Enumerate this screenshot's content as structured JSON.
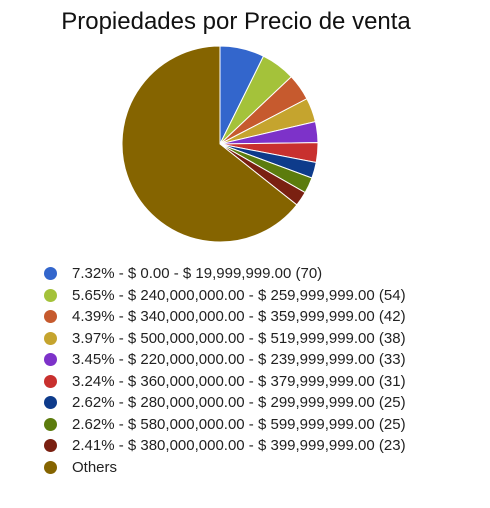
{
  "chart_data": {
    "type": "pie",
    "title": "Propiedades por Precio de venta",
    "slices": [
      {
        "label": "7.32% - $ 0.00 - $ 19,999,999.00 (70)",
        "percent": 7.32,
        "count": 70,
        "color": "#3366cc"
      },
      {
        "label": "5.65% - $ 240,000,000.00 - $ 259,999,999.00 (54)",
        "percent": 5.65,
        "count": 54,
        "color": "#a4c23a"
      },
      {
        "label": "4.39% - $ 340,000,000.00 - $ 359,999,999.00 (42)",
        "percent": 4.39,
        "count": 42,
        "color": "#c65a2e"
      },
      {
        "label": "3.97% - $ 500,000,000.00 - $ 519,999,999.00 (38)",
        "percent": 3.97,
        "count": 38,
        "color": "#c5a42e"
      },
      {
        "label": "3.45% - $ 220,000,000.00 - $ 239,999,999.00 (33)",
        "percent": 3.45,
        "count": 33,
        "color": "#7d32c9"
      },
      {
        "label": "3.24% - $ 360,000,000.00 - $ 379,999,999.00 (31)",
        "percent": 3.24,
        "count": 31,
        "color": "#c8302e"
      },
      {
        "label": "2.62% - $ 280,000,000.00 - $ 299,999,999.00 (25)",
        "percent": 2.62,
        "count": 25,
        "color": "#0e3b8b"
      },
      {
        "label": "2.62% - $ 580,000,000.00 - $ 599,999,999.00 (25)",
        "percent": 2.62,
        "count": 25,
        "color": "#5c7c0d"
      },
      {
        "label": "2.41% - $ 380,000,000.00 - $ 399,999,999.00 (23)",
        "percent": 2.41,
        "count": 23,
        "color": "#7a2011"
      },
      {
        "label": "Others",
        "percent": 64.33,
        "count": null,
        "color": "#856400"
      }
    ]
  }
}
